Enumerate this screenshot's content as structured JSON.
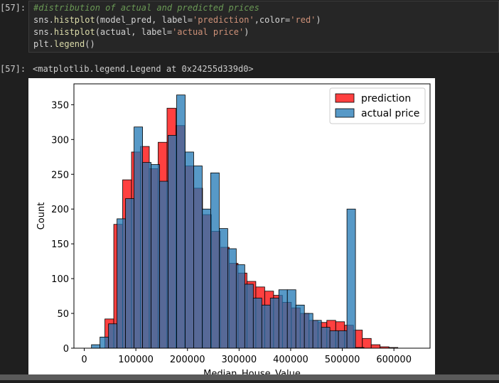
{
  "cell": {
    "input_prompt": "[57]:",
    "output_prompt": "[57]:",
    "code": [
      [
        {
          "t": "#distribution of actual and predicted prices",
          "c": "c-comment"
        }
      ],
      [
        {
          "t": "sns.",
          "c": "c-op"
        },
        {
          "t": "histplot",
          "c": "c-fn"
        },
        {
          "t": "(model_pred, label=",
          "c": "c-op"
        },
        {
          "t": "'prediction'",
          "c": "c-str"
        },
        {
          "t": ",color=",
          "c": "c-op"
        },
        {
          "t": "'red'",
          "c": "c-str"
        },
        {
          "t": ")",
          "c": "c-op"
        }
      ],
      [
        {
          "t": "sns.",
          "c": "c-op"
        },
        {
          "t": "histplot",
          "c": "c-fn"
        },
        {
          "t": "(actual, label=",
          "c": "c-op"
        },
        {
          "t": "'actual price'",
          "c": "c-str"
        },
        {
          "t": ")",
          "c": "c-op"
        }
      ],
      [
        {
          "t": "plt.",
          "c": "c-op"
        },
        {
          "t": "legend",
          "c": "c-fn"
        },
        {
          "t": "()",
          "c": "c-op"
        }
      ]
    ],
    "output_text": "<matplotlib.legend.Legend at 0x24255d339d0>"
  },
  "chart_data": {
    "type": "bar",
    "xlabel": "Median_House_Value",
    "ylabel": "Count",
    "xlim": [
      -20000,
      670000
    ],
    "ylim": [
      0,
      380
    ],
    "xticks": [
      0,
      100000,
      200000,
      300000,
      400000,
      500000,
      600000
    ],
    "xtick_labels": [
      "0",
      "100000",
      "200000",
      "300000",
      "400000",
      "500000",
      "600000"
    ],
    "yticks": [
      0,
      50,
      100,
      150,
      200,
      250,
      300,
      350
    ],
    "ytick_labels": [
      "0",
      "50",
      "100",
      "150",
      "200",
      "250",
      "300",
      "350"
    ],
    "legend_position": "top-right",
    "series": [
      {
        "name": "prediction",
        "color": "#ff0000",
        "bin_start": 40000,
        "bin_width": 17200,
        "values": [
          42,
          178,
          242,
          282,
          290,
          258,
          296,
          345,
          320,
          262,
          230,
          192,
          168,
          145,
          122,
          108,
          96,
          88,
          82,
          76,
          66,
          58,
          50,
          40,
          37,
          40,
          38,
          33,
          26,
          14,
          5,
          2,
          1
        ]
      },
      {
        "name": "actual price",
        "color": "#1f77b4",
        "bin_start": 14000,
        "bin_width": 16500,
        "values": [
          5,
          16,
          35,
          186,
          215,
          318,
          267,
          264,
          240,
          306,
          364,
          282,
          262,
          200,
          252,
          172,
          143,
          120,
          92,
          72,
          62,
          72,
          84,
          84,
          62,
          50,
          40,
          30,
          25,
          25,
          200,
          1,
          0,
          0,
          0,
          0,
          0
        ]
      }
    ]
  }
}
